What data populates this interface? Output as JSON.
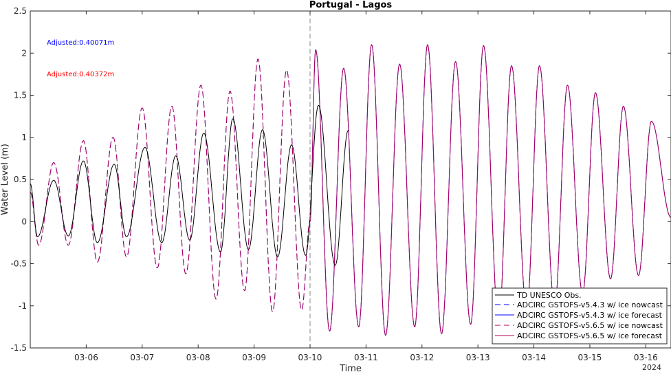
{
  "chart_data": {
    "type": "line",
    "title": "Portugal - Lagos",
    "xlabel": "Time",
    "ylabel": "Water Level (m)",
    "year_label": "2024",
    "ylim": [
      -1.5,
      2.5
    ],
    "yticks": [
      -1.5,
      -1,
      -0.5,
      0,
      0.5,
      1,
      1.5,
      2,
      2.5
    ],
    "ytick_labels": [
      "-1.5",
      "-1",
      "-0.5",
      "0",
      "0.5",
      "1",
      "1.5",
      "2",
      "2.5"
    ],
    "xlim_days": [
      5.0,
      16.45
    ],
    "xticks_days": [
      6,
      7,
      8,
      9,
      10,
      11,
      12,
      13,
      14,
      15,
      16
    ],
    "xtick_labels": [
      "03-06",
      "03-07",
      "03-08",
      "03-09",
      "03-10",
      "03-11",
      "03-12",
      "03-13",
      "03-14",
      "03-15",
      "03-16"
    ],
    "forecast_start_day": 10,
    "grid": false,
    "legend_position": "bottom-right",
    "annotations": [
      {
        "text": "Adjusted:0.40071m",
        "color": "#0000ff"
      },
      {
        "text": "Adjusted:0.40372m",
        "color": "#ff0000"
      }
    ],
    "series": [
      {
        "name": "TD UNESCO Obs.",
        "color": "#000000",
        "dash": "solid",
        "x_range": [
          5.0,
          10.7
        ],
        "peaks": [
          [
            5.0,
            0.45
          ],
          [
            5.13,
            -0.18
          ],
          [
            5.42,
            0.49
          ],
          [
            5.68,
            -0.17
          ],
          [
            5.95,
            0.72
          ],
          [
            6.2,
            -0.25
          ],
          [
            6.5,
            0.68
          ],
          [
            6.72,
            -0.18
          ],
          [
            7.05,
            0.88
          ],
          [
            7.35,
            -0.25
          ],
          [
            7.6,
            0.78
          ],
          [
            7.85,
            -0.22
          ],
          [
            8.1,
            1.05
          ],
          [
            8.4,
            -0.36
          ],
          [
            8.62,
            1.22
          ],
          [
            8.9,
            -0.33
          ],
          [
            9.15,
            1.09
          ],
          [
            9.42,
            -0.42
          ],
          [
            9.67,
            0.91
          ],
          [
            9.92,
            -0.4
          ],
          [
            10.15,
            1.38
          ],
          [
            10.45,
            -0.52
          ],
          [
            10.68,
            1.08
          ]
        ]
      },
      {
        "name": "ADCIRC GSTOFS-v5.4.3 w/ ice nowcast",
        "color": "#0000ff",
        "dash": "dashed",
        "x_range": [
          5.0,
          10.0
        ],
        "peaks": [
          [
            5.0,
            0.35
          ],
          [
            5.15,
            -0.28
          ],
          [
            5.42,
            0.7
          ],
          [
            5.68,
            -0.28
          ],
          [
            5.95,
            0.96
          ],
          [
            6.2,
            -0.48
          ],
          [
            6.48,
            1.0
          ],
          [
            6.72,
            -0.42
          ],
          [
            7.0,
            1.35
          ],
          [
            7.27,
            -0.55
          ],
          [
            7.53,
            1.37
          ],
          [
            7.78,
            -0.62
          ],
          [
            8.05,
            1.62
          ],
          [
            8.32,
            -0.92
          ],
          [
            8.57,
            1.55
          ],
          [
            8.83,
            -0.82
          ],
          [
            9.07,
            1.93
          ],
          [
            9.33,
            -1.07
          ],
          [
            9.58,
            1.8
          ],
          [
            9.85,
            -1.05
          ],
          [
            10.0,
            0.0
          ]
        ]
      },
      {
        "name": "ADCIRC GSTOFS-v5.4.3 w/ ice forecast",
        "color": "#0000ff",
        "dash": "solid",
        "x_range": [
          10.0,
          16.45
        ],
        "peaks": [
          [
            10.0,
            0.0
          ],
          [
            10.1,
            2.04
          ],
          [
            10.35,
            -1.3
          ],
          [
            10.6,
            1.82
          ],
          [
            10.87,
            -1.25
          ],
          [
            11.1,
            2.1
          ],
          [
            11.35,
            -1.35
          ],
          [
            11.6,
            1.87
          ],
          [
            11.87,
            -1.25
          ],
          [
            12.1,
            2.1
          ],
          [
            12.35,
            -1.33
          ],
          [
            12.6,
            1.9
          ],
          [
            12.87,
            -1.22
          ],
          [
            13.1,
            2.09
          ],
          [
            13.37,
            -1.2
          ],
          [
            13.6,
            1.85
          ],
          [
            13.87,
            -1.05
          ],
          [
            14.1,
            1.85
          ],
          [
            14.37,
            -1.0
          ],
          [
            14.6,
            1.62
          ],
          [
            14.87,
            -0.85
          ],
          [
            15.1,
            1.53
          ],
          [
            15.37,
            -0.68
          ],
          [
            15.6,
            1.37
          ],
          [
            15.87,
            -0.64
          ],
          [
            16.1,
            1.19
          ],
          [
            16.45,
            0.05
          ]
        ]
      },
      {
        "name": "ADCIRC GSTOFS-v5.6.5 w/ ice nowcast",
        "color": "#b0005a",
        "dash": "dashed",
        "x_range": [
          5.0,
          10.0
        ],
        "peaks": [
          [
            5.0,
            0.35
          ],
          [
            5.15,
            -0.28
          ],
          [
            5.42,
            0.7
          ],
          [
            5.68,
            -0.28
          ],
          [
            5.95,
            0.96
          ],
          [
            6.2,
            -0.48
          ],
          [
            6.48,
            1.0
          ],
          [
            6.72,
            -0.42
          ],
          [
            7.0,
            1.35
          ],
          [
            7.27,
            -0.55
          ],
          [
            7.53,
            1.37
          ],
          [
            7.78,
            -0.62
          ],
          [
            8.05,
            1.62
          ],
          [
            8.32,
            -0.92
          ],
          [
            8.57,
            1.55
          ],
          [
            8.83,
            -0.82
          ],
          [
            9.07,
            1.93
          ],
          [
            9.33,
            -1.07
          ],
          [
            9.58,
            1.8
          ],
          [
            9.85,
            -1.05
          ],
          [
            10.0,
            0.0
          ]
        ]
      },
      {
        "name": "ADCIRC GSTOFS-v5.6.5 w/ ice forecast",
        "color": "#b0005a",
        "dash": "solid",
        "x_range": [
          10.0,
          16.45
        ],
        "peaks": [
          [
            10.0,
            0.0
          ],
          [
            10.1,
            2.04
          ],
          [
            10.35,
            -1.3
          ],
          [
            10.6,
            1.82
          ],
          [
            10.87,
            -1.25
          ],
          [
            11.1,
            2.1
          ],
          [
            11.35,
            -1.35
          ],
          [
            11.6,
            1.87
          ],
          [
            11.87,
            -1.25
          ],
          [
            12.1,
            2.1
          ],
          [
            12.35,
            -1.33
          ],
          [
            12.6,
            1.9
          ],
          [
            12.87,
            -1.22
          ],
          [
            13.1,
            2.09
          ],
          [
            13.37,
            -1.2
          ],
          [
            13.6,
            1.85
          ],
          [
            13.87,
            -1.05
          ],
          [
            14.1,
            1.85
          ],
          [
            14.37,
            -1.0
          ],
          [
            14.6,
            1.62
          ],
          [
            14.87,
            -0.85
          ],
          [
            15.1,
            1.53
          ],
          [
            15.37,
            -0.68
          ],
          [
            15.6,
            1.37
          ],
          [
            15.87,
            -0.64
          ],
          [
            16.1,
            1.19
          ],
          [
            16.45,
            0.05
          ]
        ]
      }
    ]
  }
}
